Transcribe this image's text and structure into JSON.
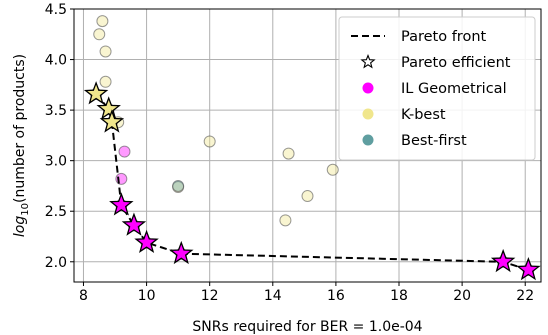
{
  "chart_data": {
    "type": "scatter",
    "xlabel": "SNRs required for BER = 1.0e-04",
    "ylabel_prefix": "log",
    "ylabel_subscript": "10",
    "ylabel_suffix": "(number of products)",
    "xlim": [
      7.7,
      22.5
    ],
    "ylim": [
      1.8,
      4.5
    ],
    "xticks": [
      8,
      10,
      12,
      14,
      16,
      18,
      20,
      22
    ],
    "yticks": [
      2.0,
      2.5,
      3.0,
      3.5,
      4.0,
      4.5
    ],
    "ytick_labels": [
      "2.0",
      "2.5",
      "3.0",
      "3.5",
      "4.0",
      "4.5"
    ],
    "grid": true,
    "legend_position": "top-right",
    "legend": [
      {
        "label": "Pareto front",
        "marker": "dashed-line"
      },
      {
        "label": "Pareto efficient",
        "marker": "star-outline"
      },
      {
        "label": "IL Geometrical",
        "marker": "circle",
        "color": "#ff00ff"
      },
      {
        "label": "K-best",
        "marker": "circle",
        "color": "#f0e68c"
      },
      {
        "label": "Best-first",
        "marker": "circle",
        "color": "#5f9ea0"
      }
    ],
    "series": [
      {
        "name": "IL Geometrical",
        "color": "#ff00ff",
        "points": [
          [
            9.3,
            3.09
          ],
          [
            9.2,
            2.82
          ],
          [
            9.2,
            2.56
          ],
          [
            9.6,
            2.36
          ],
          [
            10.0,
            2.19
          ],
          [
            11.1,
            2.08
          ],
          [
            21.3,
            2.0
          ],
          [
            22.1,
            1.92
          ]
        ]
      },
      {
        "name": "K-best",
        "color": "#f0e68c",
        "points": [
          [
            8.5,
            4.25
          ],
          [
            8.6,
            4.38
          ],
          [
            8.7,
            4.08
          ],
          [
            8.7,
            3.78
          ],
          [
            8.4,
            3.66
          ],
          [
            8.8,
            3.51
          ],
          [
            8.9,
            3.38
          ],
          [
            9.1,
            3.38
          ],
          [
            12.0,
            3.19
          ],
          [
            14.5,
            3.07
          ],
          [
            15.1,
            2.65
          ],
          [
            15.9,
            2.91
          ],
          [
            14.4,
            2.41
          ],
          [
            11.0,
            2.74
          ]
        ]
      },
      {
        "name": "Best-first",
        "color": "#5f9ea0",
        "points": [
          [
            11.0,
            2.75
          ]
        ]
      },
      {
        "name": "Pareto front",
        "type": "line",
        "style": "dashed",
        "points": [
          [
            8.4,
            3.66
          ],
          [
            8.8,
            3.51
          ],
          [
            8.9,
            3.38
          ],
          [
            9.2,
            2.56
          ],
          [
            9.6,
            2.36
          ],
          [
            10.0,
            2.19
          ],
          [
            11.1,
            2.08
          ],
          [
            21.3,
            2.0
          ],
          [
            22.1,
            1.92
          ]
        ]
      },
      {
        "name": "Pareto efficient",
        "type": "star",
        "points": [
          {
            "x": 8.4,
            "y": 3.66,
            "color": "#f0e68c"
          },
          {
            "x": 8.8,
            "y": 3.51,
            "color": "#f0e68c"
          },
          {
            "x": 8.9,
            "y": 3.38,
            "color": "#f0e68c"
          },
          {
            "x": 9.2,
            "y": 2.56,
            "color": "#ff00ff"
          },
          {
            "x": 9.6,
            "y": 2.36,
            "color": "#ff00ff"
          },
          {
            "x": 10.0,
            "y": 2.19,
            "color": "#ff00ff"
          },
          {
            "x": 11.1,
            "y": 2.08,
            "color": "#ff00ff"
          },
          {
            "x": 21.3,
            "y": 2.0,
            "color": "#ff00ff"
          },
          {
            "x": 22.1,
            "y": 1.92,
            "color": "#ff00ff"
          }
        ]
      }
    ]
  }
}
